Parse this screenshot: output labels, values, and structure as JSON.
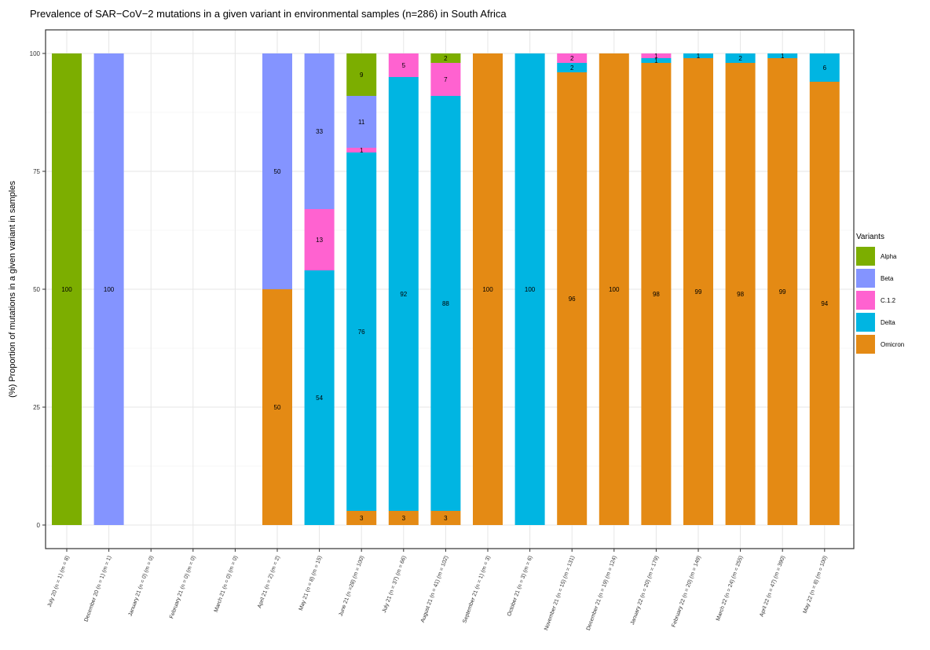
{
  "chart_data": {
    "type": "bar",
    "stacked": true,
    "title": "Prevalence of SAR−CoV−2 mutations in a given variant in environmental samples (n=286) in South Africa",
    "xlabel": "",
    "ylabel": "(%) Proportion of mutations in a given variant in samples",
    "ylim": [
      0,
      100
    ],
    "yticks": [
      0,
      25,
      50,
      75,
      100
    ],
    "grid": true,
    "legend_title": "Variants",
    "legend_position": "right",
    "categories": [
      "July 20 (n = 1) (m = 8)",
      "December 20 (n = 1) (m = 1)",
      "January 21 (n = 0) (m = 0)",
      "February 21 (n = 0) (m = 0)",
      "March 21 (n = 0) (m = 0)",
      "April 21 (n = 2) (m = 2)",
      "May 21 (n = 8) (m = 15)",
      "June 21 (n =28) (m = 100)",
      "July 21 (n = 37) (m = 66)",
      "August 21 (n = 41) (m = 102)",
      "September 21 (n = 1) (m = 3)",
      "October 21 (n = 3) (m = 6)",
      "November 21 (n = 15) (m = 131)",
      "December 21 (n = 19) (m = 124)",
      "January 22 (n = 20) (m = 179)",
      "February 22 (n = 20) (m = 149)",
      "March 22 (n = 24) (m = 255)",
      "April 22 (n = 47) (m = 390)",
      "May 22 (n = 8) (m = 100)"
    ],
    "series": [
      {
        "name": "Omicron",
        "color": "#E48A14",
        "values": [
          0,
          0,
          0,
          0,
          0,
          50,
          0,
          3,
          3,
          3,
          100,
          0,
          96,
          100,
          98,
          99,
          98,
          99,
          94
        ],
        "labels": [
          "",
          "",
          "",
          "",
          "",
          "50",
          "",
          "3",
          "3",
          "3",
          "100",
          "",
          "96",
          "100",
          "98",
          "99",
          "98",
          "99",
          "94"
        ]
      },
      {
        "name": "Delta",
        "color": "#00B5E2",
        "values": [
          0,
          0,
          0,
          0,
          0,
          0,
          54,
          76,
          92,
          88,
          0,
          100,
          2,
          0,
          1,
          1,
          2,
          1,
          6
        ],
        "labels": [
          "",
          "",
          "",
          "",
          "",
          "",
          "54",
          "76",
          "92",
          "88",
          "",
          "100",
          "2",
          "",
          "1",
          "1",
          "2",
          "1",
          "6"
        ]
      },
      {
        "name": "C.1.2",
        "color": "#FF62D0",
        "values": [
          0,
          0,
          0,
          0,
          0,
          0,
          13,
          1,
          5,
          7,
          0,
          0,
          2,
          0,
          1,
          0,
          0,
          0,
          0
        ],
        "labels": [
          "",
          "",
          "",
          "",
          "",
          "",
          "13",
          "1",
          "5",
          "7",
          "",
          "",
          "2",
          "",
          "1",
          "",
          "",
          "",
          ""
        ]
      },
      {
        "name": "Beta",
        "color": "#8494FF",
        "values": [
          0,
          100,
          0,
          0,
          0,
          50,
          33,
          11,
          0,
          0,
          0,
          0,
          0,
          0,
          0,
          0,
          0,
          0,
          0
        ],
        "labels": [
          "",
          "100",
          "",
          "",
          "",
          "50",
          "33",
          "11",
          "",
          "",
          "",
          "",
          "",
          "",
          "",
          "",
          "",
          "",
          ""
        ]
      },
      {
        "name": "Alpha",
        "color": "#7CAE00",
        "values": [
          100,
          0,
          0,
          0,
          0,
          0,
          0,
          9,
          0,
          2,
          0,
          0,
          0,
          0,
          0,
          0,
          0,
          0,
          0
        ],
        "labels": [
          "100",
          "",
          "",
          "",
          "",
          "",
          "",
          "9",
          "",
          "2",
          "",
          "",
          "",
          "",
          "",
          "",
          "",
          "",
          ""
        ]
      }
    ],
    "legend_order": [
      "Alpha",
      "Beta",
      "C.1.2",
      "Delta",
      "Omicron"
    ]
  }
}
